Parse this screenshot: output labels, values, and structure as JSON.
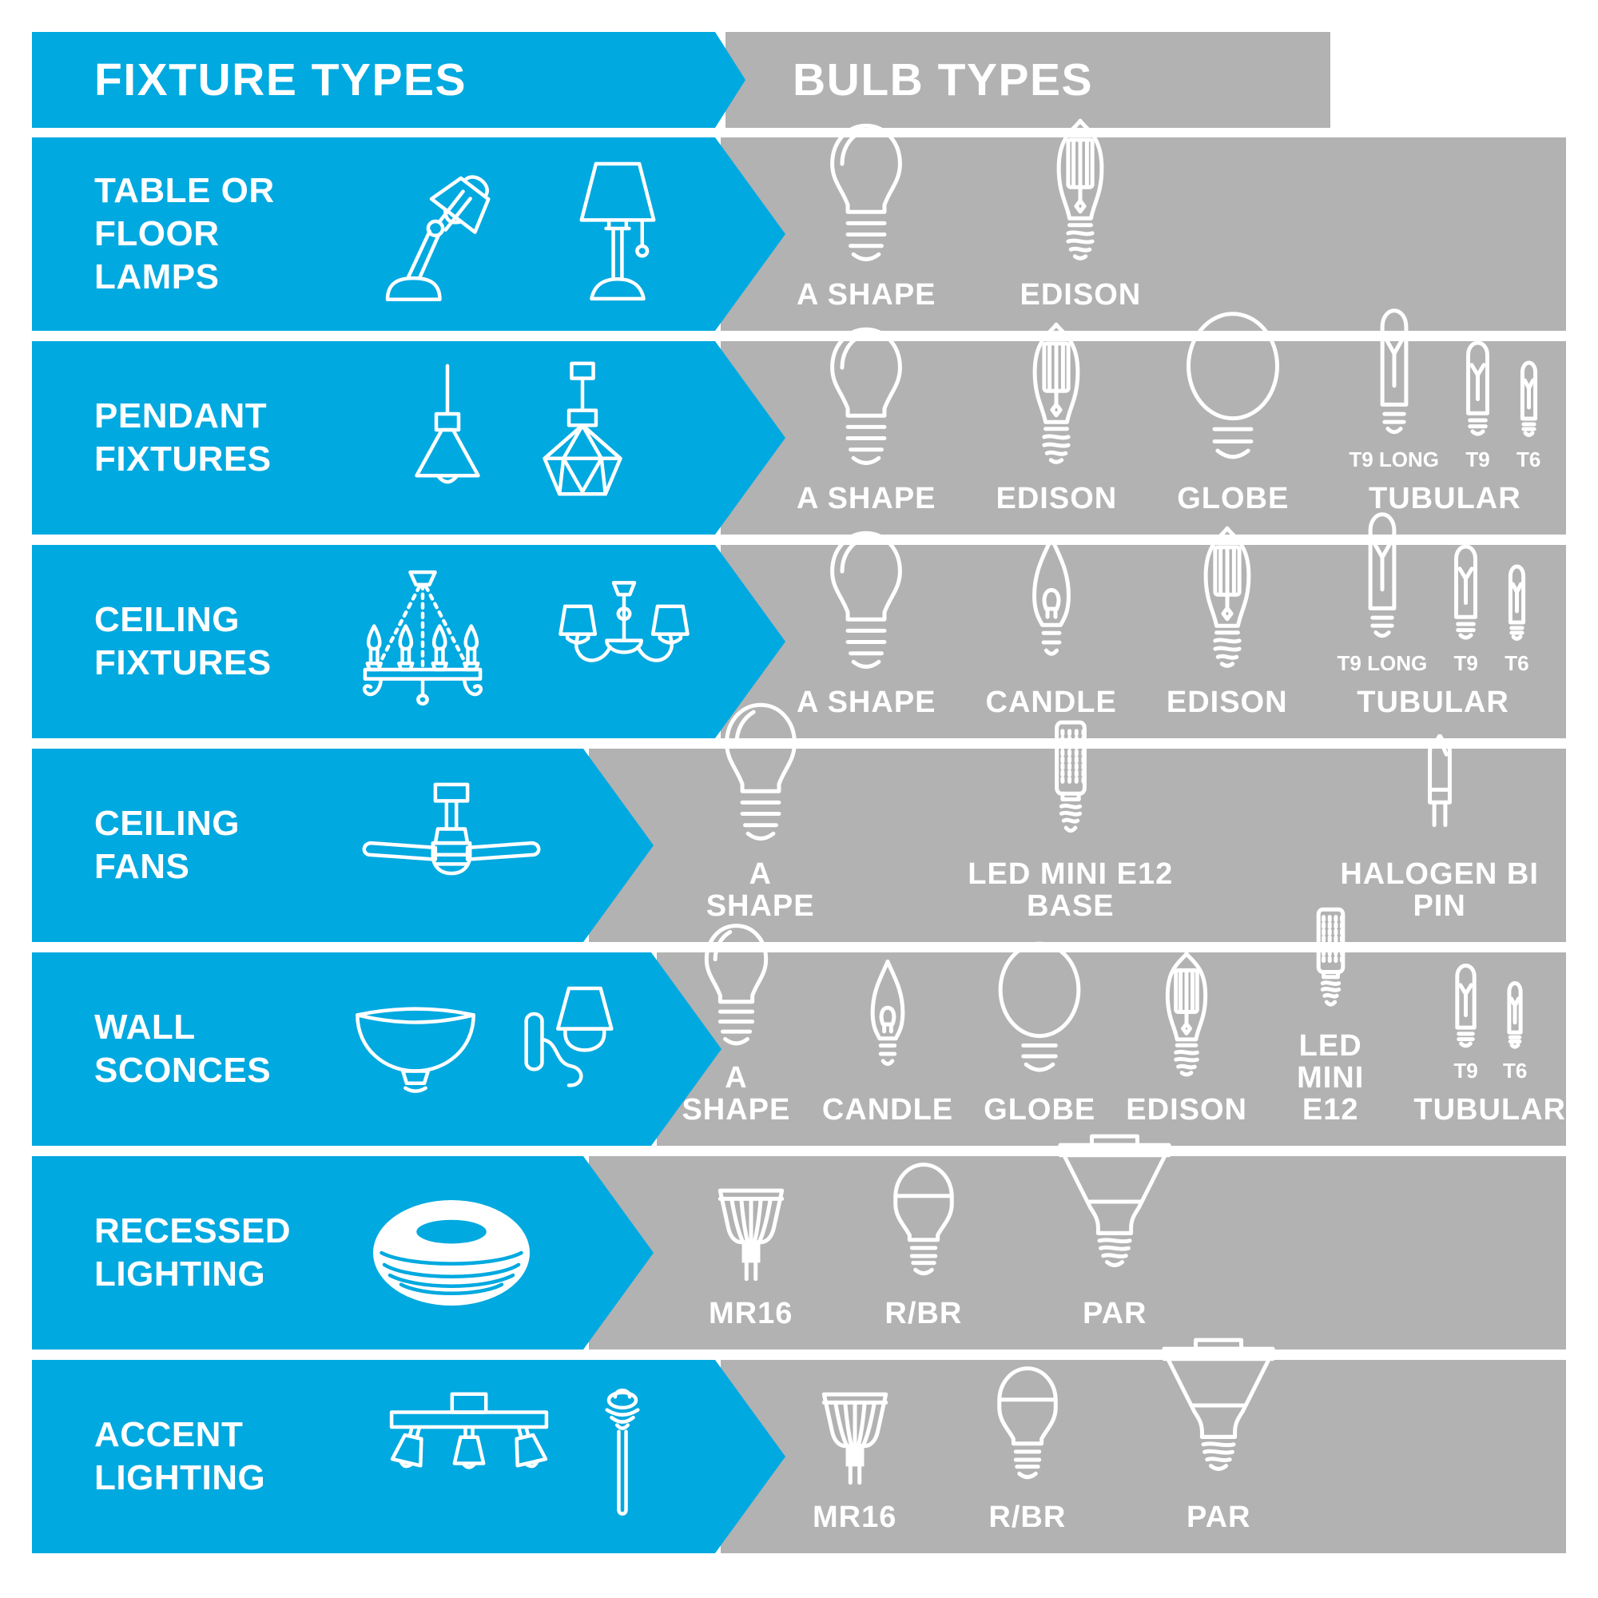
{
  "colors": {
    "blue": "#00A9E0",
    "gray": "#B2B2B2",
    "text": "#FFFFFF"
  },
  "header": {
    "fixture_title": "FIXTURE TYPES",
    "bulb_title": "BULB TYPES"
  },
  "rows": [
    {
      "label": "TABLE OR\nFLOOR\nLAMPS",
      "fixture_icons": [
        "desk-lamp-icon",
        "table-lamp-icon"
      ],
      "bulbs": [
        {
          "label": "A SHAPE",
          "icon": "a-shape-icon"
        },
        {
          "label": "EDISON",
          "icon": "edison-icon"
        }
      ]
    },
    {
      "label": "PENDANT\nFIXTURES",
      "fixture_icons": [
        "pendant-cone-icon",
        "pendant-geometric-icon"
      ],
      "bulbs": [
        {
          "label": "A SHAPE",
          "icon": "a-shape-icon"
        },
        {
          "label": "EDISON",
          "icon": "edison-icon"
        },
        {
          "label": "GLOBE",
          "icon": "globe-icon"
        },
        {
          "label": "TUBULAR",
          "icon": "tubular-icon",
          "variants": [
            {
              "label": "T9 LONG",
              "icon": "tubular-icon"
            },
            {
              "label": "T9",
              "icon": "tubular-icon"
            },
            {
              "label": "T6",
              "icon": "tubular-icon"
            }
          ]
        }
      ]
    },
    {
      "label": "CEILING\nFIXTURES",
      "fixture_icons": [
        "chandelier-candles-icon",
        "chandelier-shades-icon"
      ],
      "bulbs": [
        {
          "label": "A SHAPE",
          "icon": "a-shape-icon"
        },
        {
          "label": "CANDLE",
          "icon": "candle-icon"
        },
        {
          "label": "EDISON",
          "icon": "edison-icon"
        },
        {
          "label": "TUBULAR",
          "icon": "tubular-icon",
          "variants": [
            {
              "label": "T9 LONG",
              "icon": "tubular-icon"
            },
            {
              "label": "T9",
              "icon": "tubular-icon"
            },
            {
              "label": "T6",
              "icon": "tubular-icon"
            }
          ]
        }
      ]
    },
    {
      "label": "CEILING\nFANS",
      "fixture_icons": [
        "ceiling-fan-icon"
      ],
      "bulbs": [
        {
          "label": "A SHAPE",
          "icon": "a-shape-icon"
        },
        {
          "label": "LED MINI E12 BASE",
          "icon": "led-mini-icon"
        },
        {
          "label": "HALOGEN BI PIN",
          "icon": "halogen-bipin-icon"
        }
      ]
    },
    {
      "label": "WALL\nSCONCES",
      "fixture_icons": [
        "bowl-light-icon",
        "wall-sconce-icon"
      ],
      "bulbs": [
        {
          "label": "A SHAPE",
          "icon": "a-shape-icon"
        },
        {
          "label": "CANDLE",
          "icon": "candle-icon"
        },
        {
          "label": "GLOBE",
          "icon": "globe-icon"
        },
        {
          "label": "EDISON",
          "icon": "edison-icon"
        },
        {
          "label": "LED\nMINI E12",
          "icon": "led-mini-icon"
        },
        {
          "label": "TUBULAR",
          "icon": "tubular-icon",
          "variants": [
            {
              "label": "T9",
              "icon": "tubular-icon"
            },
            {
              "label": "T6",
              "icon": "tubular-icon"
            }
          ]
        }
      ]
    },
    {
      "label": "RECESSED\nLIGHTING",
      "fixture_icons": [
        "recessed-can-icon"
      ],
      "bulbs": [
        {
          "label": "MR16",
          "icon": "mr16-icon"
        },
        {
          "label": "R/BR",
          "icon": "r-br-icon"
        },
        {
          "label": "PAR",
          "icon": "par-icon"
        }
      ]
    },
    {
      "label": "ACCENT\nLIGHTING",
      "fixture_icons": [
        "track-light-icon",
        "path-light-icon"
      ],
      "bulbs": [
        {
          "label": "MR16",
          "icon": "mr16-icon"
        },
        {
          "label": "R/BR",
          "icon": "r-br-icon"
        },
        {
          "label": "PAR",
          "icon": "par-icon"
        }
      ]
    }
  ]
}
